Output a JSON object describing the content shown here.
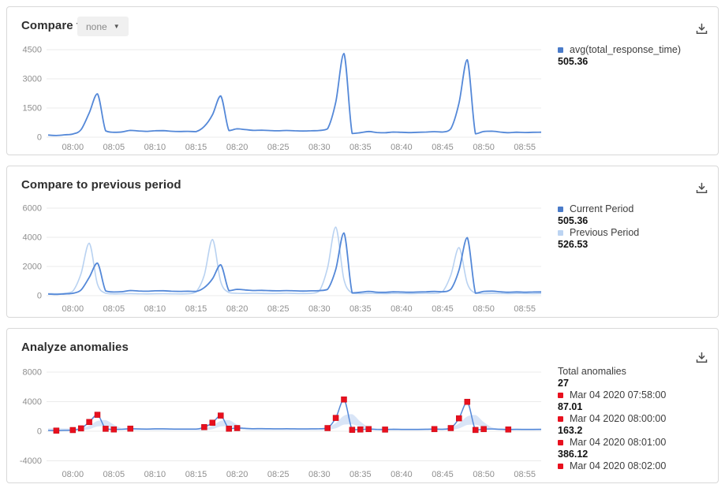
{
  "colors": {
    "blue": "#4a7bc9",
    "lightblue": "#bcd4f2",
    "red": "#e8101e",
    "line_blue": "#5488d8",
    "line_lightblue": "#b9d2f1",
    "band_fill": "#cfdff5",
    "grid": "#ebebeb",
    "axis_text": "#8f8f8f"
  },
  "panels": [
    {
      "title": "Compare to",
      "dropdown_value": "none",
      "legend": [
        {
          "swatch": "blue",
          "label": "avg(total_response_time)",
          "value": "505.36"
        }
      ]
    },
    {
      "title": "Compare to previous period",
      "legend": [
        {
          "swatch": "blue",
          "label": "Current Period",
          "value": "505.36"
        },
        {
          "swatch": "lightblue",
          "label": "Previous Period",
          "value": "526.53"
        }
      ]
    },
    {
      "title": "Analyze anomalies",
      "legend": [
        {
          "swatch": null,
          "label": "Total anomalies",
          "value": "27"
        },
        {
          "swatch": "red",
          "label": "Mar 04 2020 07:58:00",
          "value": "87.01"
        },
        {
          "swatch": "red",
          "label": "Mar 04 2020 08:00:00",
          "value": "163.2"
        },
        {
          "swatch": "red",
          "label": "Mar 04 2020 08:01:00",
          "value": "386.12"
        },
        {
          "swatch": "red",
          "label": "Mar 04 2020 08:02:00",
          "value": ""
        }
      ]
    }
  ],
  "chart_data": [
    {
      "type": "line",
      "title": "Compare to",
      "x_start": "07:57",
      "x_minutes_per_point": 1,
      "x_tick_labels": [
        "08:00",
        "08:05",
        "08:10",
        "08:15",
        "08:20",
        "08:25",
        "08:30",
        "08:35",
        "08:40",
        "08:45",
        "08:50",
        "08:55"
      ],
      "x_tick_offsets": [
        3,
        8,
        13,
        18,
        23,
        28,
        33,
        38,
        43,
        48,
        53,
        58
      ],
      "y_ticks": [
        0,
        1500,
        3000,
        4500
      ],
      "ylim": [
        0,
        4500
      ],
      "grid": true,
      "legend_position": "right",
      "series": [
        {
          "name": "avg(total_response_time)",
          "color": "line_blue",
          "width": 1.8,
          "values": [
            110,
            87,
            120,
            163,
            386,
            1250,
            2230,
            330,
            250,
            270,
            350,
            320,
            300,
            330,
            335,
            305,
            290,
            300,
            285,
            550,
            1150,
            2120,
            340,
            430,
            390,
            350,
            360,
            340,
            330,
            345,
            330,
            315,
            330,
            345,
            430,
            1800,
            4300,
            190,
            230,
            290,
            240,
            225,
            265,
            250,
            235,
            250,
            265,
            285,
            265,
            430,
            1750,
            3980,
            175,
            290,
            310,
            265,
            230,
            255,
            240,
            250,
            255
          ]
        }
      ]
    },
    {
      "type": "line",
      "title": "Compare to previous period",
      "x_start": "07:57",
      "x_minutes_per_point": 1,
      "x_tick_labels": [
        "08:00",
        "08:05",
        "08:10",
        "08:15",
        "08:20",
        "08:25",
        "08:30",
        "08:35",
        "08:40",
        "08:45",
        "08:50",
        "08:55"
      ],
      "x_tick_offsets": [
        3,
        8,
        13,
        18,
        23,
        28,
        33,
        38,
        43,
        48,
        53,
        58
      ],
      "y_ticks": [
        0,
        2000,
        4000,
        6000
      ],
      "ylim": [
        0,
        6000
      ],
      "grid": true,
      "legend_position": "right",
      "series": [
        {
          "name": "Previous Period",
          "color": "line_lightblue",
          "width": 1.6,
          "values": [
            140,
            130,
            160,
            300,
            1500,
            3600,
            800,
            160,
            120,
            130,
            140,
            125,
            120,
            130,
            135,
            125,
            120,
            130,
            260,
            1400,
            3850,
            950,
            210,
            160,
            150,
            160,
            150,
            145,
            150,
            160,
            150,
            145,
            155,
            320,
            1900,
            4700,
            1100,
            170,
            140,
            150,
            145,
            140,
            150,
            145,
            140,
            150,
            155,
            150,
            280,
            1400,
            3300,
            850,
            160,
            140,
            150,
            145,
            140,
            150,
            145,
            140,
            145
          ]
        },
        {
          "name": "Current Period",
          "color": "line_blue",
          "width": 1.8,
          "values": [
            110,
            87,
            120,
            163,
            386,
            1250,
            2230,
            330,
            250,
            270,
            350,
            320,
            300,
            330,
            335,
            305,
            290,
            300,
            285,
            550,
            1150,
            2120,
            340,
            430,
            390,
            350,
            360,
            340,
            330,
            345,
            330,
            315,
            330,
            345,
            430,
            1800,
            4300,
            190,
            230,
            290,
            240,
            225,
            265,
            250,
            235,
            250,
            265,
            285,
            265,
            430,
            1750,
            3980,
            175,
            290,
            310,
            265,
            230,
            255,
            240,
            250,
            255
          ]
        }
      ]
    },
    {
      "type": "line",
      "title": "Analyze anomalies",
      "x_start": "07:57",
      "x_minutes_per_point": 1,
      "x_tick_labels": [
        "08:00",
        "08:05",
        "08:10",
        "08:15",
        "08:20",
        "08:25",
        "08:30",
        "08:35",
        "08:40",
        "08:45",
        "08:50",
        "08:55"
      ],
      "x_tick_offsets": [
        3,
        8,
        13,
        18,
        23,
        28,
        33,
        38,
        43,
        48,
        53,
        58
      ],
      "y_ticks": [
        -4000,
        0,
        4000,
        8000
      ],
      "ylim": [
        -4000,
        8000
      ],
      "grid": true,
      "legend_position": "right",
      "band": {
        "name": "expected-range",
        "color": "band_fill",
        "lo": [
          120,
          120,
          120,
          120,
          150,
          280,
          650,
          680,
          420,
          170,
          120,
          120,
          120,
          120,
          120,
          120,
          120,
          120,
          120,
          150,
          280,
          650,
          680,
          420,
          170,
          120,
          120,
          120,
          120,
          120,
          120,
          120,
          120,
          120,
          200,
          400,
          900,
          950,
          600,
          250,
          150,
          120,
          120,
          120,
          120,
          120,
          120,
          120,
          120,
          190,
          380,
          850,
          900,
          550,
          230,
          140,
          120,
          120,
          120,
          120,
          120
        ],
        "hi": [
          380,
          380,
          380,
          380,
          400,
          750,
          1400,
          1500,
          900,
          400,
          380,
          380,
          380,
          380,
          380,
          380,
          380,
          380,
          380,
          400,
          750,
          1400,
          1500,
          900,
          400,
          380,
          380,
          380,
          380,
          380,
          380,
          380,
          380,
          380,
          550,
          1100,
          2100,
          2300,
          1300,
          550,
          380,
          380,
          380,
          380,
          380,
          380,
          380,
          380,
          380,
          520,
          1050,
          2000,
          2200,
          1250,
          520,
          380,
          380,
          380,
          380,
          380,
          380
        ]
      },
      "series": [
        {
          "name": "avg(total_response_time)",
          "color": "line_blue",
          "width": 1.5,
          "values": [
            110,
            87,
            120,
            163,
            386,
            1250,
            2230,
            330,
            250,
            270,
            350,
            320,
            300,
            330,
            335,
            305,
            290,
            300,
            285,
            550,
            1150,
            2120,
            340,
            430,
            390,
            350,
            360,
            340,
            330,
            345,
            330,
            315,
            330,
            345,
            430,
            1800,
            4300,
            190,
            230,
            290,
            240,
            225,
            265,
            250,
            235,
            250,
            265,
            285,
            265,
            430,
            1750,
            3980,
            175,
            290,
            310,
            265,
            230,
            255,
            240,
            250,
            255
          ]
        }
      ],
      "anomalies": {
        "total": 27,
        "color": "red",
        "points": [
          [
            1,
            87
          ],
          [
            3,
            163
          ],
          [
            4,
            386
          ],
          [
            5,
            1250
          ],
          [
            6,
            2230
          ],
          [
            7,
            330
          ],
          [
            8,
            250
          ],
          [
            10,
            350
          ],
          [
            19,
            550
          ],
          [
            20,
            1150
          ],
          [
            21,
            2120
          ],
          [
            22,
            340
          ],
          [
            23,
            430
          ],
          [
            34,
            430
          ],
          [
            35,
            1800
          ],
          [
            36,
            4300
          ],
          [
            37,
            190
          ],
          [
            38,
            230
          ],
          [
            39,
            290
          ],
          [
            41,
            225
          ],
          [
            47,
            285
          ],
          [
            49,
            430
          ],
          [
            50,
            1750
          ],
          [
            51,
            3980
          ],
          [
            52,
            175
          ],
          [
            53,
            290
          ],
          [
            56,
            230
          ]
        ]
      }
    }
  ]
}
